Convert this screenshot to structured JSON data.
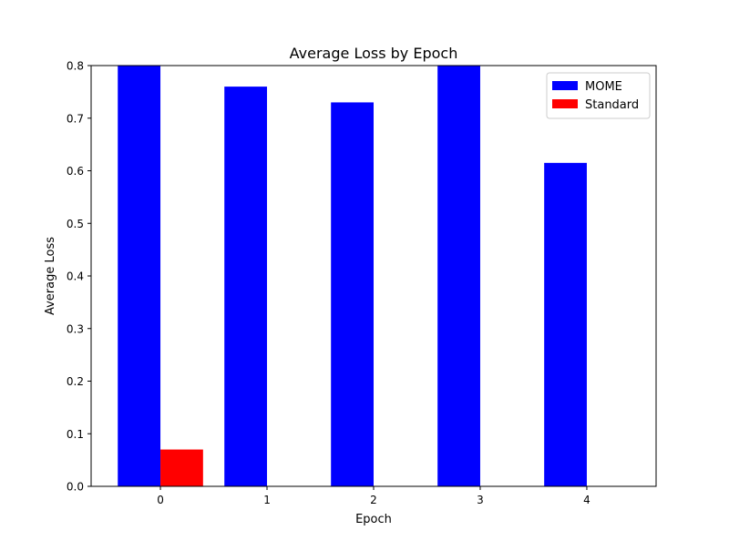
{
  "chart_data": {
    "type": "bar",
    "title": "Average Loss by Epoch",
    "xlabel": "Epoch",
    "ylabel": "Average Loss",
    "categories": [
      "0",
      "1",
      "2",
      "3",
      "4"
    ],
    "x": [
      0,
      1,
      2,
      3,
      4
    ],
    "series": [
      {
        "name": "MOME",
        "values": [
          0.8,
          0.76,
          0.73,
          0.8,
          0.615
        ],
        "color": "#0000ff"
      },
      {
        "name": "Standard",
        "values": [
          0.07,
          0,
          0,
          0,
          0
        ],
        "color": "#ff0000"
      }
    ],
    "ylim": [
      0,
      0.8
    ],
    "xlim": [
      -0.65,
      4.65
    ],
    "yticks": [
      "0.0",
      "0.1",
      "0.2",
      "0.3",
      "0.4",
      "0.5",
      "0.6",
      "0.7",
      "0.8"
    ],
    "ytick_values": [
      0,
      0.1,
      0.2,
      0.3,
      0.4,
      0.5,
      0.6,
      0.7,
      0.8
    ],
    "grid": false,
    "legend_position": "top-right"
  }
}
